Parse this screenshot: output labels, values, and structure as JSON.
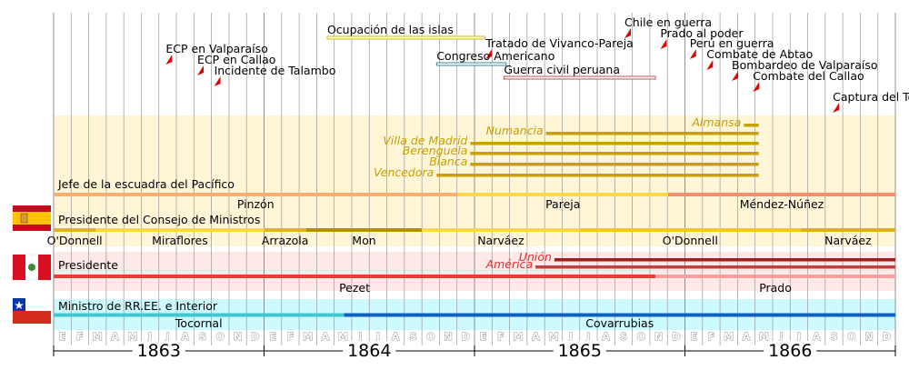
{
  "chart_data": {
    "type": "timeline",
    "years": [
      "1863",
      "1864",
      "1865",
      "1866"
    ],
    "month_letters": [
      "E",
      "F",
      "M",
      "A",
      "M",
      "J",
      "J",
      "A",
      "S",
      "O",
      "N",
      "D"
    ],
    "events": [
      {
        "label": "ECP en Valparaíso",
        "date": 1863.55
      },
      {
        "label": "ECP en Callao",
        "date": 1863.7
      },
      {
        "label": "Incidente de Talambo",
        "date": 1863.78
      },
      {
        "label": "Chile en guerra",
        "date": 1865.73
      },
      {
        "label": "Prado al poder",
        "date": 1865.9
      },
      {
        "label": "Perú en guerra",
        "date": 1866.04
      },
      {
        "label": "Combate de Abtao",
        "date": 1866.12
      },
      {
        "label": "Bombardeo de Valparaíso",
        "date": 1866.24
      },
      {
        "label": "Combate del Callao",
        "date": 1866.34
      },
      {
        "label": "Captura del Tornado",
        "date": 1866.72
      },
      {
        "label": "Tratado de Vivanco-Pareja",
        "date": 1865.07
      }
    ],
    "periods": [
      {
        "label": "Ocupación de las islas",
        "start": 1864.3,
        "end": 1865.05,
        "color": "#d4b800"
      },
      {
        "label": "Congreso Americano",
        "start": 1864.82,
        "end": 1865.15,
        "color": "#3a8aa0"
      },
      {
        "label": "Guerra civil peruana",
        "start": 1865.14,
        "end": 1865.86,
        "color": "#c05050"
      }
    ],
    "ships": [
      {
        "name": "Almansa",
        "start": 1866.28,
        "end": 1866.35
      },
      {
        "name": "Numancia",
        "start": 1865.34,
        "end": 1866.35
      },
      {
        "name": "Villa de Madrid",
        "start": 1864.98,
        "end": 1866.35
      },
      {
        "name": "Berenguela",
        "start": 1864.98,
        "end": 1866.35
      },
      {
        "name": "Blanca",
        "start": 1864.98,
        "end": 1866.35
      },
      {
        "name": "Vencedora",
        "start": 1864.82,
        "end": 1866.35
      }
    ],
    "ship_color": "#c8a000",
    "spain": {
      "fleet_title": "Jefe de la escuadra del Pacífico",
      "fleet": [
        {
          "name": "Pinzón",
          "start": 1863.0,
          "end": 1864.92,
          "color": "#f8b070"
        },
        {
          "name": "Pareja",
          "start": 1864.92,
          "end": 1865.92,
          "color": "#ffd84a"
        },
        {
          "name": "Méndez-Núñez",
          "start": 1865.92,
          "end": 1867.0,
          "color": "#f88c70"
        }
      ],
      "council_title": "Presidente del Consejo de Ministros",
      "council": [
        {
          "name": "O'Donnell",
          "start": 1863.0,
          "end": 1863.2,
          "color": "#e0b030"
        },
        {
          "name": "Miraflores",
          "start": 1863.2,
          "end": 1864.0,
          "color": "#ffd84a"
        },
        {
          "name": "Arrazola",
          "start": 1864.0,
          "end": 1864.2,
          "color": "#e0b030"
        },
        {
          "name": "Mon",
          "start": 1864.2,
          "end": 1864.75,
          "color": "#b09000"
        },
        {
          "name": "Narváez",
          "start": 1864.75,
          "end": 1865.5,
          "color": "#ffd84a"
        },
        {
          "name": "O'Donnell",
          "start": 1865.5,
          "end": 1866.55,
          "color": "#f8c820"
        },
        {
          "name": "Narváez",
          "start": 1866.55,
          "end": 1867.0,
          "color": "#d8b020"
        }
      ]
    },
    "peru": {
      "title": "Presidente",
      "presidents": [
        {
          "name": "Pezet",
          "start": 1863.0,
          "end": 1865.86,
          "color": "#ef3a3a"
        },
        {
          "name": "Prado",
          "start": 1865.86,
          "end": 1867.0,
          "color": "#f8a0a0"
        }
      ],
      "ships": [
        {
          "name": "Unión",
          "start": 1865.38,
          "end": 1867.0,
          "color": "#a02020"
        },
        {
          "name": "América",
          "start": 1865.29,
          "end": 1867.0,
          "color": "#c04040"
        }
      ]
    },
    "chile": {
      "title": "Ministro de RR.EE. e Interior",
      "ministers": [
        {
          "name": "Tocornal",
          "start": 1863.0,
          "end": 1864.38,
          "color": "#40c8d0"
        },
        {
          "name": "Covarrubias",
          "start": 1864.38,
          "end": 1867.0,
          "color": "#1060c0"
        }
      ]
    },
    "colors": {
      "spain_band": "#fff6d8",
      "peru_band": "#ffe8e8",
      "chile_band": "#ccfaff",
      "event_flag": "#e00000"
    }
  }
}
